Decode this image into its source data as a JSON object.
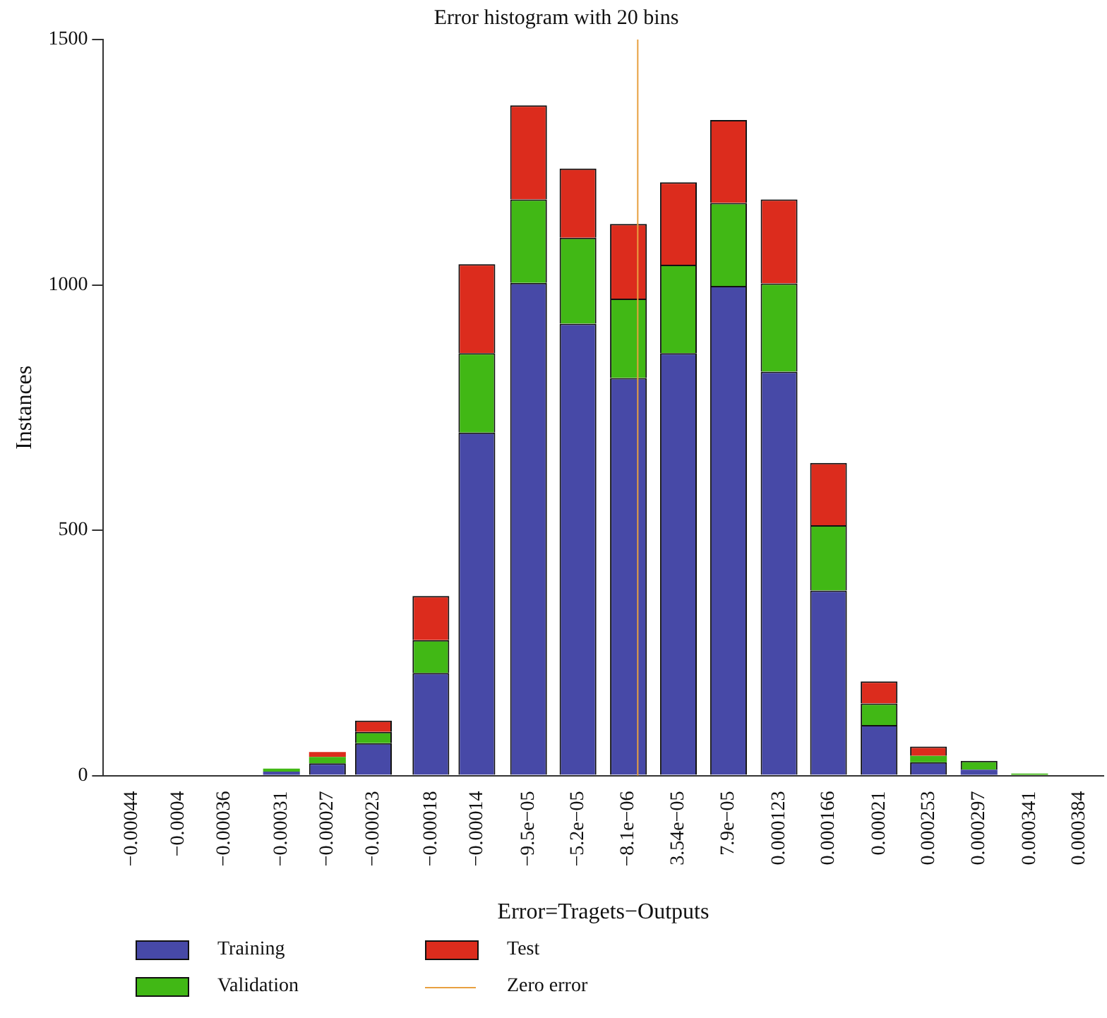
{
  "chart_data": {
    "type": "bar",
    "title": "Error histogram with 20 bins",
    "xlabel": "Error=Tragets−Outputs",
    "ylabel": "Instances",
    "x": [
      -0.00044,
      -0.0004,
      -0.00036,
      -0.00031,
      -0.00027,
      -0.00023,
      -0.00018,
      -0.00014,
      -9.5e-05,
      -5.2e-05,
      -8.1e-06,
      3.54e-05,
      7.9e-05,
      0.000123,
      0.000166,
      0.00021,
      0.000253,
      0.000297,
      0.000341,
      0.000384
    ],
    "xlim": [
      -0.000465,
      0.000405
    ],
    "xticks": [
      {
        "value": -0.00044,
        "label": "−0.00044"
      },
      {
        "value": -0.0004,
        "label": "−0.0004"
      },
      {
        "value": -0.00036,
        "label": "−0.00036"
      },
      {
        "value": -0.00031,
        "label": "−0.00031"
      },
      {
        "value": -0.00027,
        "label": "−0.00027"
      },
      {
        "value": -0.00023,
        "label": "−0.00023"
      },
      {
        "value": -0.00018,
        "label": "−0.00018"
      },
      {
        "value": -0.00014,
        "label": "−0.00014"
      },
      {
        "value": -9.5e-05,
        "label": "−9.5e−05"
      },
      {
        "value": -5.2e-05,
        "label": "−5.2e−05"
      },
      {
        "value": -8.1e-06,
        "label": "−8.1e−06"
      },
      {
        "value": 3.54e-05,
        "label": "3.54e−05"
      },
      {
        "value": 7.9e-05,
        "label": "7.9e−05"
      },
      {
        "value": 0.000123,
        "label": "0.000123"
      },
      {
        "value": 0.000166,
        "label": "0.000166"
      },
      {
        "value": 0.00021,
        "label": "0.00021"
      },
      {
        "value": 0.000253,
        "label": "0.000253"
      },
      {
        "value": 0.000297,
        "label": "0.000297"
      },
      {
        "value": 0.000341,
        "label": "0.000341"
      },
      {
        "value": 0.000384,
        "label": "0.000384"
      }
    ],
    "ylim": [
      0,
      1500
    ],
    "yticks": [
      0,
      500,
      1000,
      1500
    ],
    "stacked": true,
    "grid": false,
    "legend": "bottom",
    "series": [
      {
        "name": "Training",
        "color": "#4749a7",
        "values": [
          0,
          0,
          0,
          8,
          25,
          66,
          209,
          699,
          1004,
          921,
          810,
          861,
          998,
          823,
          377,
          103,
          27,
          12,
          null,
          null
        ]
      },
      {
        "name": "Validation",
        "color": "#41b815",
        "values": [
          0,
          0,
          0,
          6,
          13,
          23,
          67,
          162,
          170,
          175,
          162,
          180,
          169,
          180,
          133,
          44,
          13,
          18,
          4,
          0
        ]
      },
      {
        "name": "Test",
        "color": "#dc2c1d",
        "values": [
          0,
          0,
          0,
          0,
          10,
          23,
          90,
          181,
          192,
          141,
          152,
          168,
          169,
          171,
          127,
          45,
          19,
          0,
          0,
          0
        ]
      }
    ],
    "ref_lines": [
      {
        "axis": "x",
        "value": 0,
        "label": "Zero error",
        "color": "#e8a040"
      }
    ]
  }
}
